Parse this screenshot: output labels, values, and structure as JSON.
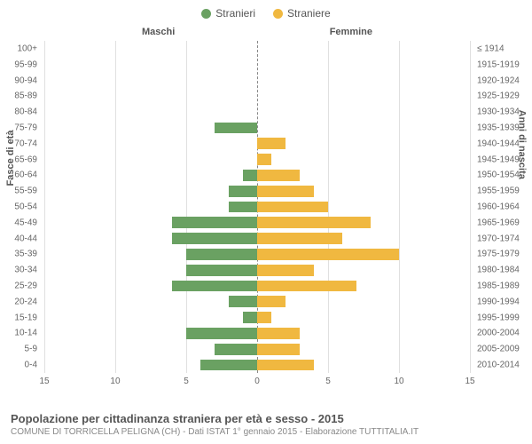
{
  "legend": {
    "male_label": "Stranieri",
    "female_label": "Straniere"
  },
  "chart": {
    "type": "population-pyramid",
    "column_header_male": "Maschi",
    "column_header_female": "Femmine",
    "y_axis_left_title": "Fasce di età",
    "y_axis_right_title": "Anni di nascita",
    "male_color": "#6aa162",
    "female_color": "#f0b840",
    "grid_color": "#e0e0e0",
    "center_line_color": "#888888",
    "background_color": "#ffffff",
    "xmax": 15,
    "x_ticks": [
      15,
      10,
      5,
      0,
      5,
      10,
      15
    ],
    "age_groups": [
      {
        "range": "0-4",
        "birth": "2010-2014",
        "male": 4,
        "female": 4
      },
      {
        "range": "5-9",
        "birth": "2005-2009",
        "male": 3,
        "female": 3
      },
      {
        "range": "10-14",
        "birth": "2000-2004",
        "male": 5,
        "female": 3
      },
      {
        "range": "15-19",
        "birth": "1995-1999",
        "male": 1,
        "female": 1
      },
      {
        "range": "20-24",
        "birth": "1990-1994",
        "male": 2,
        "female": 2
      },
      {
        "range": "25-29",
        "birth": "1985-1989",
        "male": 6,
        "female": 7
      },
      {
        "range": "30-34",
        "birth": "1980-1984",
        "male": 5,
        "female": 4
      },
      {
        "range": "35-39",
        "birth": "1975-1979",
        "male": 5,
        "female": 10
      },
      {
        "range": "40-44",
        "birth": "1970-1974",
        "male": 6,
        "female": 6
      },
      {
        "range": "45-49",
        "birth": "1965-1969",
        "male": 6,
        "female": 8
      },
      {
        "range": "50-54",
        "birth": "1960-1964",
        "male": 2,
        "female": 5
      },
      {
        "range": "55-59",
        "birth": "1955-1959",
        "male": 2,
        "female": 4
      },
      {
        "range": "60-64",
        "birth": "1950-1954",
        "male": 1,
        "female": 3
      },
      {
        "range": "65-69",
        "birth": "1945-1949",
        "male": 0,
        "female": 1
      },
      {
        "range": "70-74",
        "birth": "1940-1944",
        "male": 0,
        "female": 2
      },
      {
        "range": "75-79",
        "birth": "1935-1939",
        "male": 3,
        "female": 0
      },
      {
        "range": "80-84",
        "birth": "1930-1934",
        "male": 0,
        "female": 0
      },
      {
        "range": "85-89",
        "birth": "1925-1929",
        "male": 0,
        "female": 0
      },
      {
        "range": "90-94",
        "birth": "1920-1924",
        "male": 0,
        "female": 0
      },
      {
        "range": "95-99",
        "birth": "1915-1919",
        "male": 0,
        "female": 0
      },
      {
        "range": "100+",
        "birth": "≤ 1914",
        "male": 0,
        "female": 0
      }
    ]
  },
  "footer": {
    "title": "Popolazione per cittadinanza straniera per età e sesso - 2015",
    "subtitle": "COMUNE DI TORRICELLA PELIGNA (CH) - Dati ISTAT 1° gennaio 2015 - Elaborazione TUTTITALIA.IT"
  }
}
